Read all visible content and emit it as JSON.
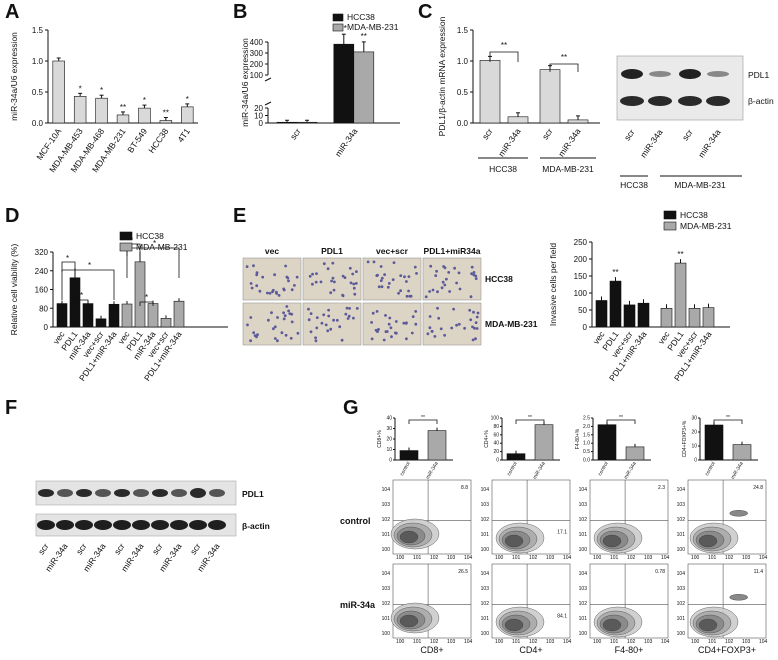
{
  "panels": {
    "A": "A",
    "B": "B",
    "C": "C",
    "D": "D",
    "E": "E",
    "F": "F",
    "G": "G"
  },
  "colors": {
    "black": "#111111",
    "gray": "#a9a9a9",
    "light": "#d9d9d9"
  },
  "chart_data": [
    {
      "id": "A",
      "type": "bar",
      "ylabel": "miR-34a/U6 expression",
      "ylim": [
        0,
        1.5
      ],
      "yticks": [
        "0.0",
        "0.5",
        "1.0",
        "1.5"
      ],
      "categories": [
        "MCF-10A",
        "MDA-MB-453",
        "MDA-MB-468",
        "MDA-MB-231",
        "BT-549",
        "HCC38",
        "4T1"
      ],
      "values": [
        1.0,
        0.43,
        0.4,
        0.13,
        0.24,
        0.04,
        0.26
      ],
      "sig": [
        "",
        "*",
        "*",
        "**",
        "*",
        "**",
        "*"
      ]
    },
    {
      "id": "B",
      "type": "bar",
      "ylabel": "miR-34a/U6 expression",
      "yticks_low": [
        "0",
        "10",
        "20"
      ],
      "yticks_high": [
        "100",
        "200",
        "300",
        "400"
      ],
      "categories": [
        "scr",
        "miR-34a"
      ],
      "series": [
        {
          "name": "HCC38",
          "values": [
            1,
            380
          ]
        },
        {
          "name": "MDA-MB-231",
          "values": [
            1,
            310
          ]
        }
      ],
      "sig": [
        "**",
        "**"
      ]
    },
    {
      "id": "C",
      "type": "bar",
      "ylabel": "PDL1/β-actin mRNA expression",
      "ylim": [
        0,
        1.5
      ],
      "yticks": [
        "0.0",
        "0.5",
        "1.0",
        "1.5"
      ],
      "categories": [
        "scr",
        "miR-34a",
        "scr",
        "miR-34a"
      ],
      "values": [
        1.01,
        0.1,
        0.86,
        0.05
      ],
      "groups": [
        "HCC38",
        "MDA-MB-231"
      ],
      "sig": [
        "**",
        "**"
      ]
    },
    {
      "id": "C-blot",
      "type": "table",
      "labels": [
        "PDL1",
        "β-actin"
      ],
      "lanes": [
        "scr",
        "miR-34a",
        "scr",
        "miR-34a"
      ],
      "groups": [
        "HCC38",
        "MDA-MB-231"
      ]
    },
    {
      "id": "D",
      "type": "bar",
      "ylabel": "Relative cell viability (%)",
      "ylim": [
        0,
        320
      ],
      "yticks": [
        "0",
        "80",
        "160",
        "240",
        "320"
      ],
      "categories": [
        "vec",
        "PDL1",
        "miR-34a",
        "vec+scr",
        "PDL1+miR-34a"
      ],
      "series": [
        {
          "name": "HCC38",
          "values": [
            100,
            210,
            100,
            35,
            97
          ]
        },
        {
          "name": "MDA-MB-231",
          "values": [
            98,
            278,
            100,
            37,
            110
          ]
        }
      ],
      "sig": [
        "*",
        "*",
        "*"
      ]
    },
    {
      "id": "E",
      "type": "bar",
      "ylabel": "Invasive cells per field",
      "ylim": [
        0,
        250
      ],
      "yticks": [
        "0",
        "50",
        "100",
        "150",
        "200",
        "250"
      ],
      "categories": [
        "vec",
        "PDL1",
        "vec+scr",
        "PDL1+miR-34a"
      ],
      "series": [
        {
          "name": "HCC38",
          "values": [
            78,
            135,
            65,
            70
          ]
        },
        {
          "name": "MDA-MB-231",
          "values": [
            55,
            188,
            55,
            57
          ]
        }
      ],
      "sig": [
        "**",
        "**"
      ]
    },
    {
      "id": "E-images",
      "type": "table",
      "columns": [
        "vec",
        "PDL1",
        "vec+scr",
        "PDL1+miR34a"
      ],
      "rows": [
        "HCC38",
        "MDA-MB-231"
      ]
    },
    {
      "id": "F",
      "type": "table",
      "labels": [
        "PDL1",
        "β-actin"
      ],
      "lanes": [
        "scr",
        "miR-34a",
        "scr",
        "miR-34a",
        "scr",
        "miR-34a",
        "scr",
        "miR-34a",
        "scr",
        "miR-34a"
      ]
    },
    {
      "id": "G",
      "type": "bar",
      "categories": [
        "control",
        "miR-34a"
      ],
      "subplots": [
        {
          "ylabel": "CD8+%",
          "yticks": [
            "0",
            "10",
            "20",
            "30",
            "40"
          ],
          "ymax": 40,
          "values": [
            9,
            28
          ],
          "sig": "**"
        },
        {
          "ylabel": "CD4+%",
          "yticks": [
            "0",
            "20",
            "40",
            "60",
            "80",
            "100"
          ],
          "ymax": 100,
          "values": [
            15,
            84
          ],
          "sig": "**"
        },
        {
          "ylabel": "F4-80+%",
          "yticks": [
            "0.0",
            "0.5",
            "1.0",
            "1.5",
            "2.0",
            "2.5"
          ],
          "ymax": 2.5,
          "values": [
            2.1,
            0.78
          ],
          "sig": "**"
        },
        {
          "ylabel": "CD4+FOXP3+%",
          "yticks": [
            "0",
            "10",
            "20",
            "30"
          ],
          "ymax": 30,
          "values": [
            25,
            11
          ],
          "sig": "**"
        }
      ]
    },
    {
      "id": "G-flow",
      "type": "scatter",
      "rows": [
        "control",
        "miR-34a"
      ],
      "columns": [
        "CD8+",
        "CD4+",
        "F4-80+",
        "CD4+FOXP3+"
      ],
      "values": [
        [
          "8.8",
          "17.1",
          "2.3",
          "24.8"
        ],
        [
          "26.5",
          "84.1",
          "0.78",
          "11.4"
        ]
      ]
    }
  ]
}
